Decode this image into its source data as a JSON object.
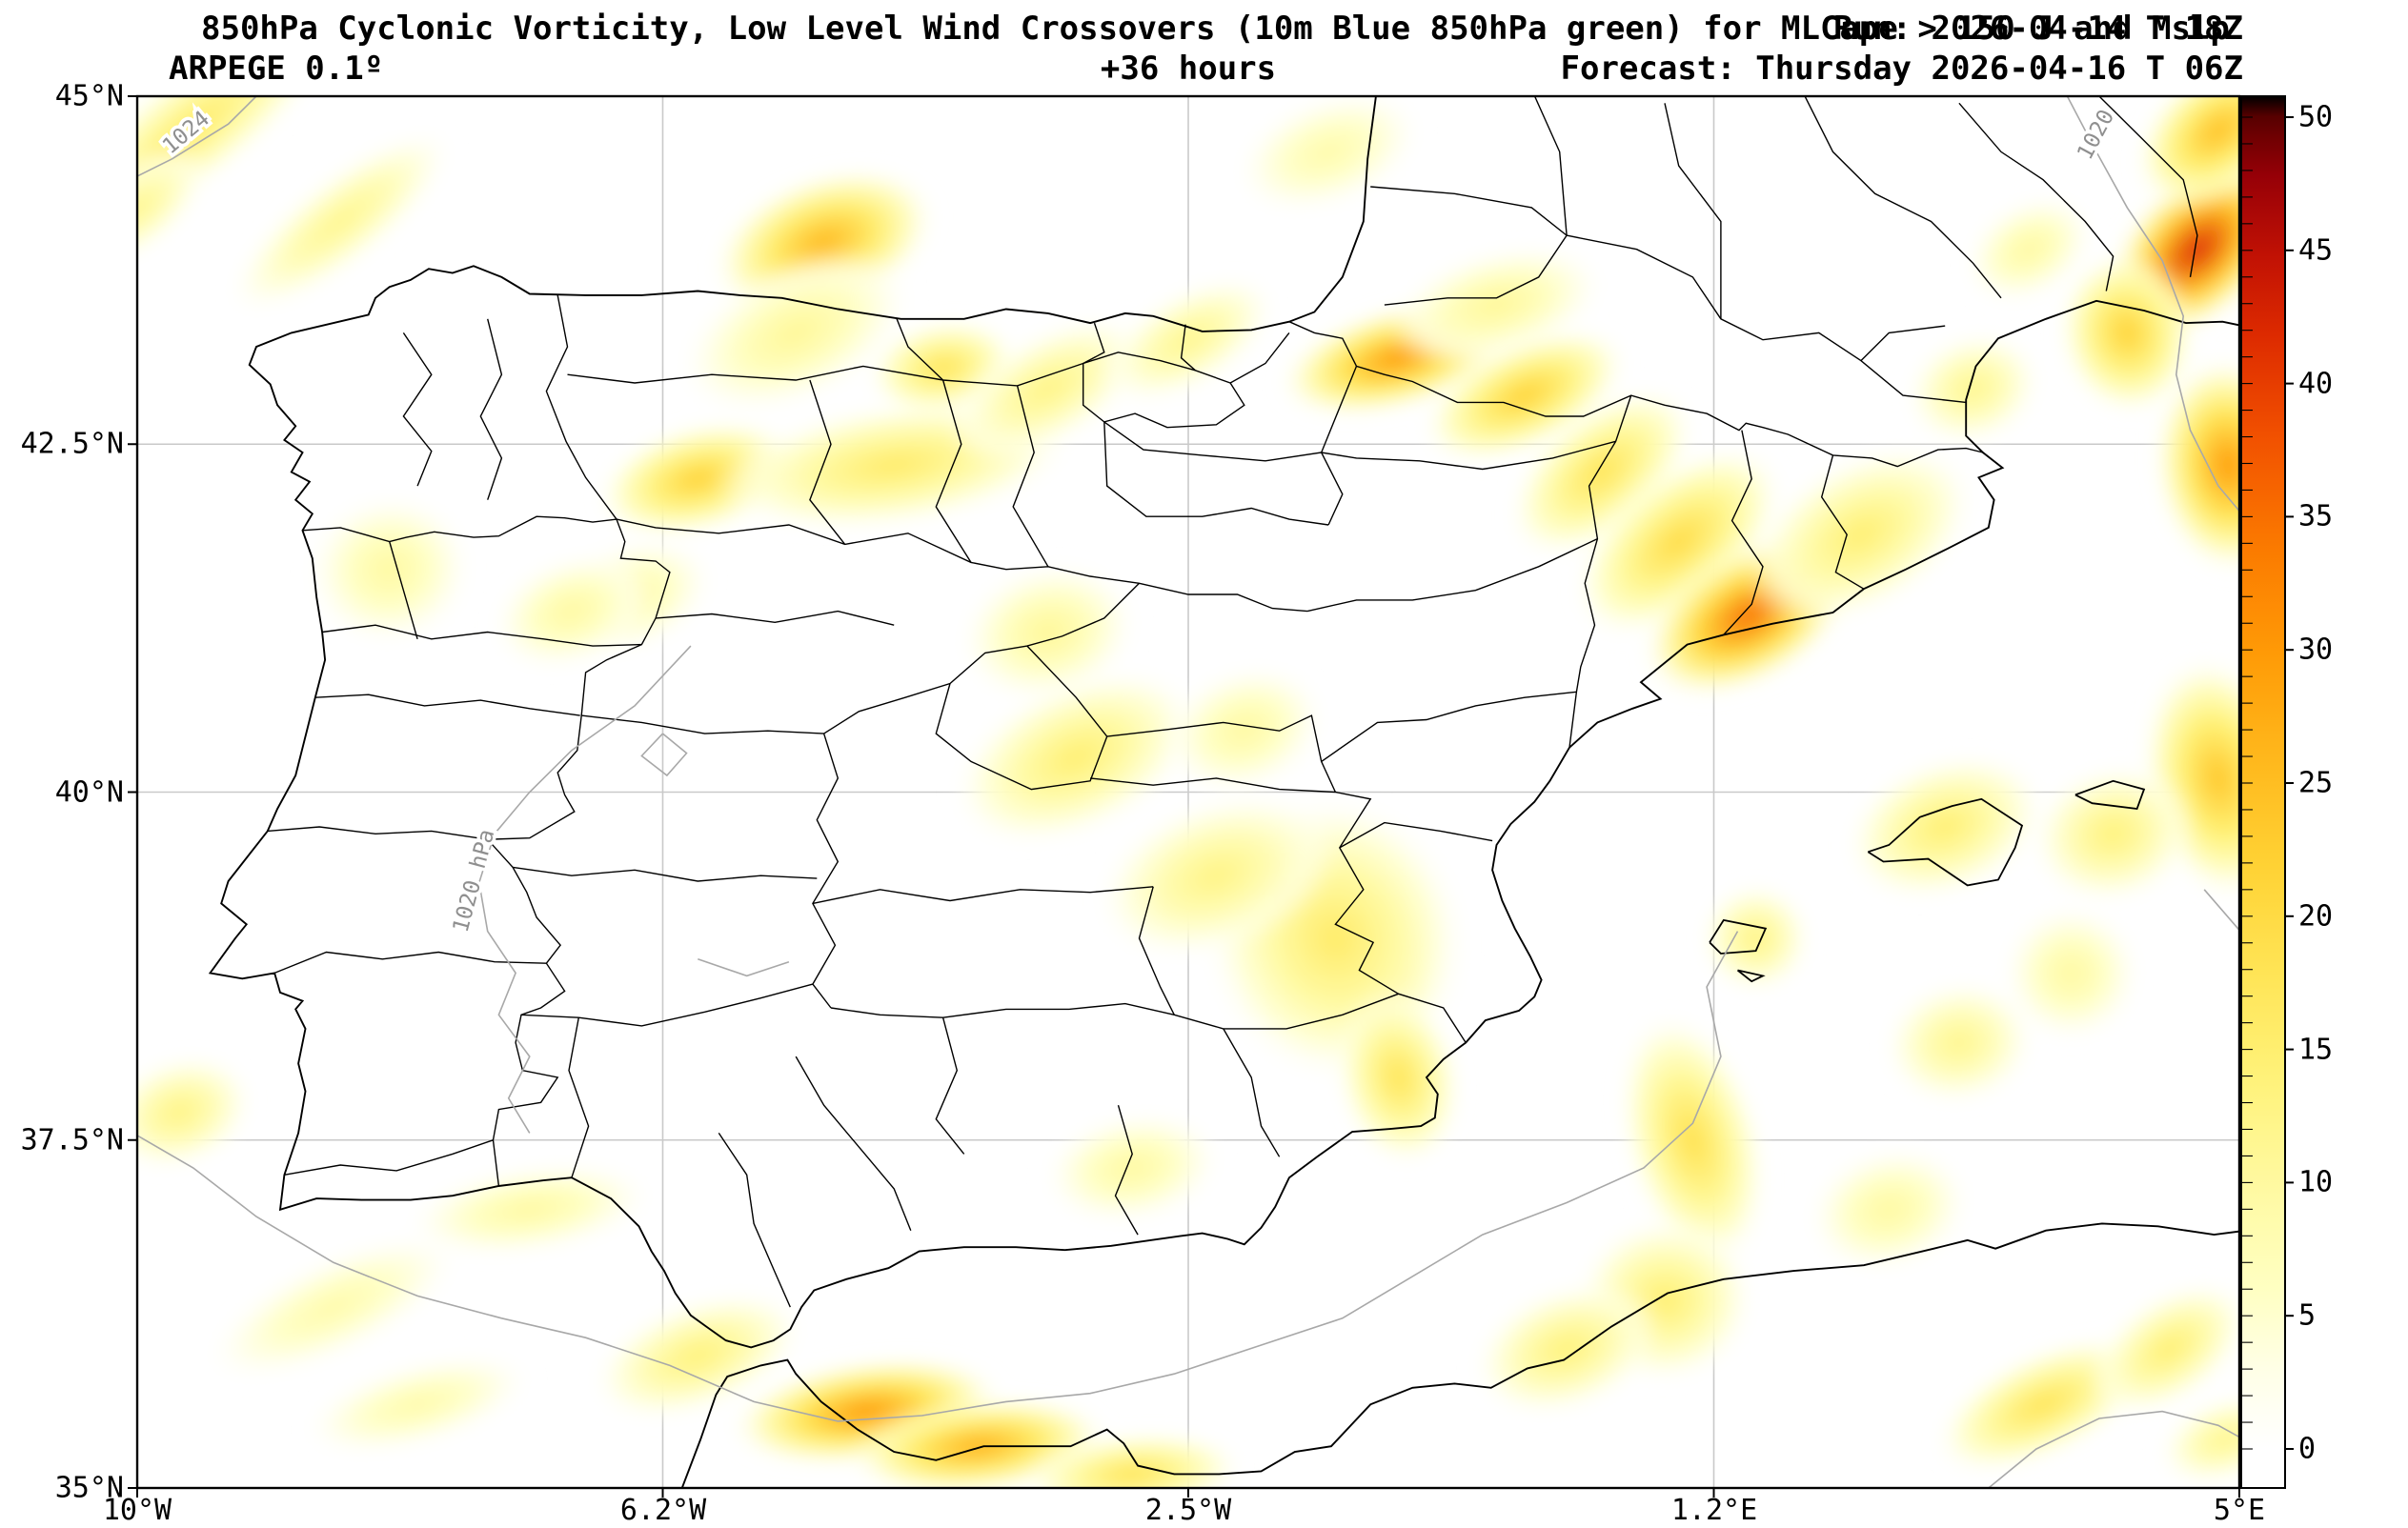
{
  "header": {
    "title": "850hPa Cyclonic Vorticity, Low Level Wind Crossovers (10m Blue 850hPa green) for MLCape > 150 J and Mslp",
    "run": "Run: 2026-04-14 T 18Z",
    "model": "ARPEGE 0.1º",
    "lead": "+36 hours",
    "forecast": "Forecast: Thursday 2026-04-16 T 06Z"
  },
  "chart_data": {
    "type": "heatmap",
    "title": "850hPa Cyclonic Vorticity, Low Level Wind Crossovers (10m Blue 850hPa green) for MLCape > 150 J and Mslp",
    "model": "ARPEGE 0.1º",
    "run": "2026-04-14 T 18Z",
    "lead_hours": 36,
    "forecast_valid": "Thursday 2026-04-16 T 06Z",
    "lon_range": [
      -10,
      5
    ],
    "lat_range": [
      35,
      45
    ],
    "x_ticks_deg": [
      -10,
      -6.25,
      -2.5,
      1.25,
      5
    ],
    "x_tick_labels": [
      "10°W",
      "6.2°W",
      "2.5°W",
      "1.2°E",
      "5°E"
    ],
    "y_ticks_deg": [
      45,
      42.5,
      40,
      37.5,
      35
    ],
    "y_tick_labels": [
      "45°N",
      "42.5°N",
      "40°N",
      "37.5°N",
      "35°N"
    ],
    "grid": true,
    "legend_position": "right-colorbar",
    "colorbar": {
      "min": 0,
      "max": 50,
      "tick_values": [
        0,
        5,
        10,
        15,
        20,
        25,
        30,
        35,
        40,
        45,
        50
      ],
      "tick_labels": [
        "0",
        "5",
        "10",
        "15",
        "20",
        "25",
        "30",
        "35",
        "40",
        "45",
        "50"
      ]
    },
    "colormap_stops": [
      [
        0,
        "#ffffff"
      ],
      [
        3,
        "#ffffe6"
      ],
      [
        6,
        "#ffffc2"
      ],
      [
        10,
        "#fff9a0"
      ],
      [
        14,
        "#fff279"
      ],
      [
        18,
        "#ffe455"
      ],
      [
        22,
        "#ffd234"
      ],
      [
        26,
        "#ffb81c"
      ],
      [
        30,
        "#ff9a06"
      ],
      [
        34,
        "#fb7a00"
      ],
      [
        38,
        "#f25200"
      ],
      [
        42,
        "#dd2a00"
      ],
      [
        45,
        "#c11104"
      ],
      [
        48,
        "#960007"
      ],
      [
        50,
        "#600000"
      ],
      [
        52,
        "#100000"
      ],
      [
        53,
        "#000000"
      ]
    ],
    "mslp_contour_labels": [
      {
        "text": "1024",
        "lon": -9.62,
        "lat": 44.7,
        "angle": -40
      },
      {
        "text": "1020 hPa",
        "lon": -7.55,
        "lat": 39.35,
        "angle": -75
      },
      {
        "text": "1020",
        "lon": 4.02,
        "lat": 44.7,
        "angle": -62
      }
    ],
    "hotspot_fields": [
      "lon",
      "lat",
      "value",
      "rx_deg",
      "ry_deg",
      "angle_deg"
    ],
    "vorticity_hotspots": [
      [
        -9.6,
        44.78,
        16,
        1.3,
        0.4,
        -38
      ],
      [
        -8.55,
        44.1,
        12,
        1.0,
        0.32,
        -38
      ],
      [
        -10.0,
        44.2,
        12,
        0.6,
        0.3,
        -38
      ],
      [
        -5.1,
        43.95,
        26,
        0.85,
        0.5,
        -20
      ],
      [
        -5.3,
        43.3,
        11,
        0.9,
        0.5,
        -25
      ],
      [
        -4.25,
        43.05,
        18,
        0.55,
        0.35,
        -10
      ],
      [
        -1.5,
        44.6,
        9,
        0.7,
        0.4,
        -20
      ],
      [
        -6.0,
        42.25,
        22,
        0.75,
        0.4,
        -15
      ],
      [
        -4.6,
        42.35,
        16,
        1.3,
        0.45,
        -8
      ],
      [
        -3.5,
        42.9,
        13,
        0.8,
        0.4,
        -30
      ],
      [
        -2.5,
        43.25,
        12,
        0.7,
        0.35,
        -30
      ],
      [
        -1.0,
        43.12,
        30,
        0.9,
        0.38,
        -15
      ],
      [
        -0.3,
        43.5,
        11,
        0.8,
        0.4,
        -15
      ],
      [
        -0.1,
        42.85,
        22,
        0.8,
        0.4,
        -25
      ],
      [
        0.45,
        42.3,
        18,
        0.8,
        0.45,
        -40
      ],
      [
        1.0,
        41.8,
        20,
        0.9,
        0.5,
        -40
      ],
      [
        1.5,
        41.27,
        35,
        0.85,
        0.5,
        -30
      ],
      [
        2.3,
        41.85,
        15,
        0.9,
        0.55,
        -30
      ],
      [
        4.7,
        43.9,
        42,
        0.8,
        0.5,
        -45
      ],
      [
        4.85,
        44.75,
        25,
        0.7,
        0.45,
        -40
      ],
      [
        3.5,
        43.9,
        10,
        0.5,
        0.35,
        -30
      ],
      [
        3.1,
        42.9,
        12,
        0.5,
        0.4,
        -20
      ],
      [
        4.2,
        43.3,
        22,
        0.5,
        0.6,
        -10
      ],
      [
        4.92,
        42.35,
        30,
        0.55,
        0.8,
        -5
      ],
      [
        4.85,
        40.1,
        24,
        0.55,
        0.9,
        -10
      ],
      [
        4.1,
        39.7,
        14,
        0.6,
        0.5,
        -15
      ],
      [
        2.9,
        39.75,
        15,
        0.75,
        0.5,
        -20
      ],
      [
        1.55,
        38.95,
        13,
        0.4,
        0.4,
        0
      ],
      [
        -1.25,
        38.85,
        35,
        0.5,
        0.75,
        -18
      ],
      [
        -1.45,
        38.95,
        16,
        0.95,
        1.05,
        -15
      ],
      [
        -1.0,
        37.95,
        18,
        0.45,
        0.65,
        -12
      ],
      [
        -2.3,
        39.4,
        13,
        0.9,
        0.55,
        -20
      ],
      [
        -3.3,
        40.25,
        15,
        0.95,
        0.55,
        -25
      ],
      [
        -2.1,
        40.45,
        10,
        0.6,
        0.45,
        -20
      ],
      [
        -3.5,
        41.15,
        11,
        0.65,
        0.5,
        -15
      ],
      [
        -6.5,
        41.4,
        10,
        0.65,
        0.4,
        -20
      ],
      [
        -8.2,
        41.6,
        10,
        0.6,
        0.55,
        -10
      ],
      [
        -9.7,
        37.7,
        13,
        0.55,
        0.4,
        -20
      ],
      [
        -7.2,
        37.0,
        10,
        0.9,
        0.32,
        -8
      ],
      [
        -8.6,
        36.3,
        9,
        1.0,
        0.35,
        -25
      ],
      [
        -8.0,
        35.6,
        9,
        0.85,
        0.3,
        -15
      ],
      [
        -6.0,
        35.95,
        14,
        0.8,
        0.4,
        -20
      ],
      [
        -4.8,
        35.55,
        30,
        1.0,
        0.38,
        -8
      ],
      [
        -4.0,
        35.3,
        27,
        0.95,
        0.35,
        -6
      ],
      [
        -2.9,
        35.1,
        18,
        0.8,
        0.3,
        -5
      ],
      [
        1.1,
        37.5,
        19,
        0.5,
        0.95,
        -15
      ],
      [
        0.9,
        36.35,
        15,
        0.65,
        0.6,
        -10
      ],
      [
        0.2,
        36.0,
        14,
        0.7,
        0.45,
        -20
      ],
      [
        2.5,
        37.0,
        10,
        0.6,
        0.45,
        -15
      ],
      [
        3.0,
        38.2,
        12,
        0.55,
        0.45,
        -10
      ],
      [
        3.8,
        38.7,
        10,
        0.5,
        0.5,
        0
      ],
      [
        3.6,
        35.6,
        18,
        0.85,
        0.38,
        -25
      ],
      [
        4.5,
        36.0,
        15,
        0.65,
        0.38,
        -35
      ],
      [
        4.9,
        35.35,
        12,
        0.5,
        0.3,
        -20
      ],
      [
        -2.9,
        37.3,
        10,
        0.65,
        0.4,
        -10
      ],
      [
        -6.9,
        41.3,
        10,
        0.6,
        0.4,
        -20
      ]
    ]
  }
}
